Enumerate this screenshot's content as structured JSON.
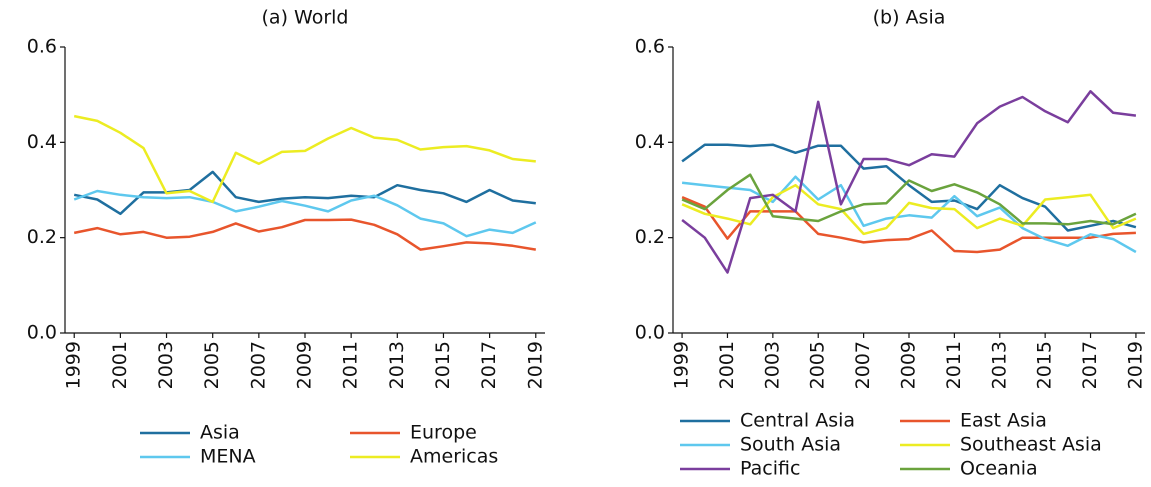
{
  "chart_data": [
    {
      "type": "line",
      "title": "(a) World",
      "x": [
        1999,
        2000,
        2001,
        2002,
        2003,
        2004,
        2005,
        2006,
        2007,
        2008,
        2009,
        2010,
        2011,
        2012,
        2013,
        2014,
        2015,
        2016,
        2017,
        2018,
        2019
      ],
      "xlim": [
        1998.6,
        2019.4
      ],
      "xticks": [
        1999,
        2001,
        2003,
        2005,
        2007,
        2009,
        2011,
        2013,
        2015,
        2017,
        2019
      ],
      "ylim": [
        0,
        0.6
      ],
      "yticks": [
        {
          "value": 0,
          "label": "0.0"
        },
        0.2,
        0.4,
        0.6
      ],
      "series": [
        {
          "name": "Asia",
          "color": "#1f6f9f",
          "values": [
            0.29,
            0.28,
            0.25,
            0.295,
            0.295,
            0.3,
            0.338,
            0.285,
            0.275,
            0.282,
            0.285,
            0.283,
            0.288,
            0.285,
            0.31,
            0.3,
            0.293,
            0.275,
            0.3,
            0.278,
            0.272
          ]
        },
        {
          "name": "Europe",
          "color": "#e8552c",
          "values": [
            0.21,
            0.22,
            0.207,
            0.212,
            0.2,
            0.202,
            0.212,
            0.23,
            0.213,
            0.222,
            0.237,
            0.237,
            0.238,
            0.227,
            0.207,
            0.175,
            0.182,
            0.19,
            0.188,
            0.183,
            0.175
          ]
        },
        {
          "name": "MENA",
          "color": "#5ec8ee",
          "values": [
            0.28,
            0.298,
            0.29,
            0.285,
            0.283,
            0.285,
            0.275,
            0.255,
            0.265,
            0.277,
            0.267,
            0.255,
            0.278,
            0.288,
            0.268,
            0.24,
            0.23,
            0.203,
            0.217,
            0.21,
            0.232
          ]
        },
        {
          "name": "Americas",
          "color": "#ecec22",
          "values": [
            0.455,
            0.445,
            0.42,
            0.388,
            0.293,
            0.298,
            0.275,
            0.378,
            0.355,
            0.38,
            0.382,
            0.408,
            0.43,
            0.41,
            0.405,
            0.385,
            0.39,
            0.392,
            0.383,
            0.365,
            0.36
          ]
        }
      ]
    },
    {
      "type": "line",
      "title": "(b) Asia",
      "x": [
        1999,
        2000,
        2001,
        2002,
        2003,
        2004,
        2005,
        2006,
        2007,
        2008,
        2009,
        2010,
        2011,
        2012,
        2013,
        2014,
        2015,
        2016,
        2017,
        2018,
        2019
      ],
      "xlim": [
        1998.6,
        2019.4
      ],
      "xticks": [
        1999,
        2001,
        2003,
        2005,
        2007,
        2009,
        2011,
        2013,
        2015,
        2017,
        2019
      ],
      "ylim": [
        0,
        0.6
      ],
      "yticks": [
        {
          "value": 0,
          "label": "0.0"
        },
        0.2,
        0.4,
        0.6
      ],
      "series": [
        {
          "name": "Central Asia",
          "color": "#1f6f9f",
          "values": [
            0.36,
            0.395,
            0.395,
            0.392,
            0.395,
            0.378,
            0.393,
            0.393,
            0.345,
            0.35,
            0.31,
            0.275,
            0.278,
            0.26,
            0.31,
            0.283,
            0.265,
            0.215,
            0.225,
            0.235,
            0.222
          ]
        },
        {
          "name": "East Asia",
          "color": "#e8552c",
          "values": [
            0.285,
            0.265,
            0.198,
            0.255,
            0.255,
            0.255,
            0.208,
            0.2,
            0.19,
            0.195,
            0.197,
            0.215,
            0.172,
            0.17,
            0.175,
            0.2,
            0.2,
            0.2,
            0.2,
            0.208,
            0.21
          ]
        },
        {
          "name": "South Asia",
          "color": "#5ec8ee",
          "values": [
            0.315,
            0.31,
            0.305,
            0.3,
            0.275,
            0.328,
            0.28,
            0.31,
            0.225,
            0.24,
            0.247,
            0.242,
            0.287,
            0.245,
            0.263,
            0.22,
            0.197,
            0.183,
            0.207,
            0.197,
            0.17
          ]
        },
        {
          "name": "Southeast Asia",
          "color": "#ecec22",
          "values": [
            0.27,
            0.25,
            0.24,
            0.228,
            0.285,
            0.31,
            0.27,
            0.26,
            0.208,
            0.22,
            0.273,
            0.262,
            0.26,
            0.22,
            0.24,
            0.225,
            0.28,
            0.285,
            0.29,
            0.22,
            0.24
          ]
        },
        {
          "name": "Pacific",
          "color": "#7a3e9d",
          "values": [
            0.237,
            0.2,
            0.127,
            0.283,
            0.29,
            0.255,
            0.485,
            0.27,
            0.365,
            0.365,
            0.352,
            0.375,
            0.37,
            0.44,
            0.475,
            0.495,
            0.465,
            0.442,
            0.507,
            0.462,
            0.456
          ]
        },
        {
          "name": "Oceania",
          "color": "#6aa33d",
          "values": [
            0.28,
            0.26,
            0.3,
            0.332,
            0.245,
            0.24,
            0.235,
            0.255,
            0.27,
            0.272,
            0.32,
            0.298,
            0.312,
            0.295,
            0.27,
            0.23,
            0.23,
            0.228,
            0.235,
            0.228,
            0.25
          ]
        }
      ]
    }
  ]
}
